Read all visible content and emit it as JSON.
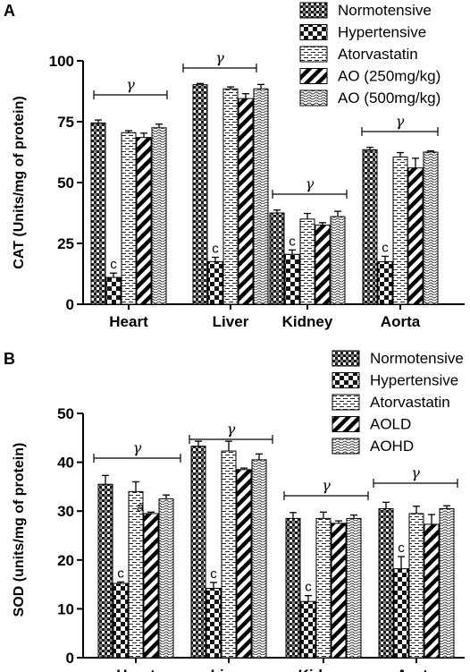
{
  "chart_data": [
    {
      "type": "bar",
      "panel": "A",
      "categories": [
        "Heart",
        "Liver",
        "Kidney",
        "Aorta"
      ],
      "ylabel": "CAT (Units/mg of protein)",
      "ylim": [
        0,
        100
      ],
      "yticks": [
        0,
        25,
        50,
        75,
        100
      ],
      "legend": "top-right",
      "series": [
        {
          "name": "Normotensive",
          "values": [
            74.5,
            90.2,
            37.5,
            63.5
          ],
          "errors": [
            1.2,
            0.5,
            1.2,
            1.0
          ],
          "pattern": "checker-dense"
        },
        {
          "name": "Hypertensive",
          "values": [
            11.0,
            17.5,
            20.5,
            17.5
          ],
          "errors": [
            1.8,
            1.8,
            1.8,
            2.2
          ],
          "pattern": "checker-large"
        },
        {
          "name": "Atorvastatin",
          "values": [
            70.5,
            88.5,
            35.0,
            60.5
          ],
          "errors": [
            0.8,
            0.8,
            2.3,
            1.8
          ],
          "pattern": "brick"
        },
        {
          "name": "AO (250mg/kg)",
          "values": [
            68.5,
            84.5,
            32.5,
            56.0
          ],
          "errors": [
            1.8,
            2.0,
            1.0,
            4.0
          ],
          "pattern": "diagonal"
        },
        {
          "name": "AO (500mg/kg)",
          "values": [
            72.5,
            88.5,
            36.0,
            62.5
          ],
          "errors": [
            1.5,
            1.8,
            2.2,
            0.5
          ],
          "pattern": "wave"
        }
      ],
      "significance_labels": [
        "c",
        "c",
        "c",
        "c"
      ],
      "group_markers": [
        "γ",
        "γ",
        "γ",
        "γ"
      ]
    },
    {
      "type": "bar",
      "panel": "B",
      "categories": [
        "Heart",
        "Liver",
        "Kidney",
        "Aorta"
      ],
      "ylabel": "SOD (units/mg of protein)",
      "ylim": [
        0,
        50
      ],
      "yticks": [
        0,
        10,
        20,
        30,
        40,
        50
      ],
      "legend": "top-right",
      "series": [
        {
          "name": "Normotensive",
          "values": [
            35.5,
            43.3,
            28.5,
            30.5
          ],
          "errors": [
            1.8,
            1.0,
            1.2,
            1.3
          ],
          "pattern": "checker-dense"
        },
        {
          "name": "Hypertensive",
          "values": [
            15.2,
            14.2,
            11.5,
            18.2
          ],
          "errors": [
            0.3,
            1.2,
            1.2,
            2.5
          ],
          "pattern": "checker-large"
        },
        {
          "name": "Atorvastatin",
          "values": [
            34.0,
            42.3,
            28.5,
            29.5
          ],
          "errors": [
            2.0,
            2.0,
            1.3,
            1.5
          ],
          "pattern": "brick"
        },
        {
          "name": "AOLD",
          "values": [
            29.5,
            38.5,
            27.5,
            27.3
          ],
          "errors": [
            0.3,
            0.3,
            0.5,
            2.0
          ],
          "pattern": "diagonal"
        },
        {
          "name": "AOHD",
          "values": [
            32.5,
            40.5,
            28.5,
            30.5
          ],
          "errors": [
            0.8,
            1.2,
            0.7,
            0.6
          ],
          "pattern": "wave"
        }
      ],
      "significance_labels": [
        "c",
        "c",
        "c",
        "c"
      ],
      "extra_label": {
        "category": "Heart",
        "series": "AOLD",
        "text": "a"
      },
      "group_markers": [
        "γ",
        "γ",
        "γ",
        "γ"
      ]
    }
  ]
}
